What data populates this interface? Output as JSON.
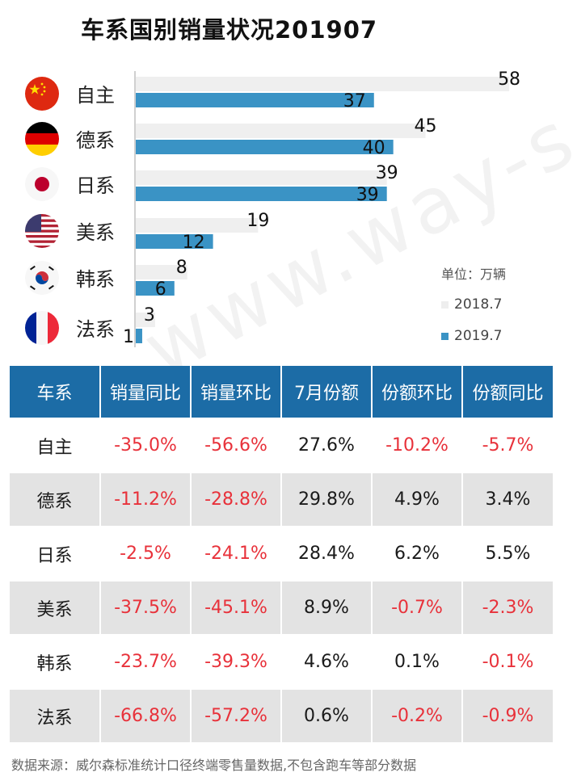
{
  "title": "车系国别销量状况201907",
  "chart_data": {
    "type": "bar",
    "orientation": "horizontal",
    "categories": [
      "自主",
      "德系",
      "日系",
      "美系",
      "韩系",
      "法系"
    ],
    "series": [
      {
        "name": "2018.7",
        "values": [
          58,
          45,
          39,
          19,
          8,
          3
        ],
        "color": "#f2f2f2"
      },
      {
        "name": "2019.7",
        "values": [
          37,
          40,
          39,
          12,
          6,
          1
        ],
        "color": "#3a93c5"
      }
    ],
    "unit": "单位：万辆",
    "xlim": [
      0,
      60
    ],
    "legend_position": "bottom-right",
    "grid": false
  },
  "flags": [
    "china-flag-icon",
    "germany-flag-icon",
    "japan-flag-icon",
    "usa-flag-icon",
    "korea-flag-icon",
    "france-flag-icon"
  ],
  "table": {
    "headers": [
      "车系",
      "销量同比",
      "销量环比",
      "7月份额",
      "份额环比",
      "份额同比"
    ],
    "rows": [
      [
        "自主",
        "-35.0%",
        "-56.6%",
        "27.6%",
        "-10.2%",
        "-5.7%"
      ],
      [
        "德系",
        "-11.2%",
        "-28.8%",
        "29.8%",
        "4.9%",
        "3.4%"
      ],
      [
        "日系",
        "-2.5%",
        "-24.1%",
        "28.4%",
        "6.2%",
        "5.5%"
      ],
      [
        "美系",
        "-37.5%",
        "-45.1%",
        "8.9%",
        "-0.7%",
        "-2.3%"
      ],
      [
        "韩系",
        "-23.7%",
        "-39.3%",
        "4.6%",
        "0.1%",
        "-0.1%"
      ],
      [
        "法系",
        "-66.8%",
        "-57.2%",
        "0.6%",
        "-0.2%",
        "-0.9%"
      ]
    ]
  },
  "source": "数据来源：威尔森标准统计口径终端零售量数据,不包含跑车等部分数据",
  "watermark": "www.way-s.cn",
  "colors": {
    "header_bg": "#1c6ca6",
    "negative": "#e8313a",
    "shade": "#e3e3e3"
  }
}
